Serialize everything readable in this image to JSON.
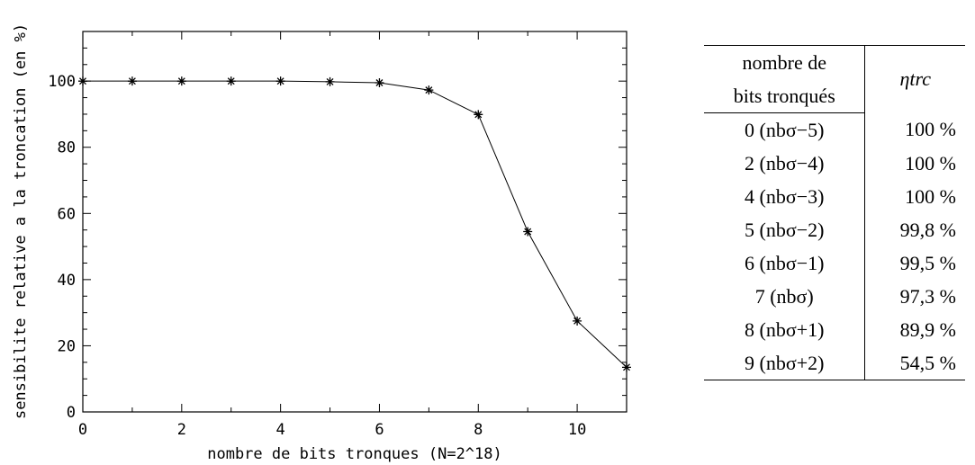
{
  "chart_data": {
    "type": "line",
    "marker": "asterisk",
    "xlabel": "nombre de bits tronques (N=2^18)",
    "ylabel": "sensibilite relative a la troncation (en %)",
    "xlim": [
      0,
      11
    ],
    "ylim": [
      0,
      115
    ],
    "x_ticks": [
      "0",
      "2",
      "4",
      "6",
      "8",
      "10"
    ],
    "y_ticks": [
      "0",
      "20",
      "40",
      "60",
      "80",
      "100"
    ],
    "series": [
      {
        "x": [
          0,
          1,
          2,
          3,
          4,
          5,
          6,
          7,
          8,
          9,
          10,
          11
        ],
        "y": [
          100,
          100,
          100,
          100,
          100,
          99.8,
          99.5,
          97.3,
          89.9,
          54.5,
          27.5,
          13.5
        ]
      }
    ]
  },
  "table": {
    "header": {
      "col1_line1": "nombre de",
      "col1_line2": "bits tronqués",
      "col2": "ηtrc"
    },
    "rows": [
      {
        "bits": "0 (nbσ−5)",
        "eta": "100 %"
      },
      {
        "bits": "2 (nbσ−4)",
        "eta": "100 %"
      },
      {
        "bits": "4 (nbσ−3)",
        "eta": "100 %"
      },
      {
        "bits": "5 (nbσ−2)",
        "eta": "99,8 %"
      },
      {
        "bits": "6 (nbσ−1)",
        "eta": "99,5 %"
      },
      {
        "bits": "7 (nbσ)",
        "eta": "97,3 %"
      },
      {
        "bits": "8 (nbσ+1)",
        "eta": "89,9 %"
      },
      {
        "bits": "9 (nbσ+2)",
        "eta": "54,5 %"
      }
    ]
  }
}
